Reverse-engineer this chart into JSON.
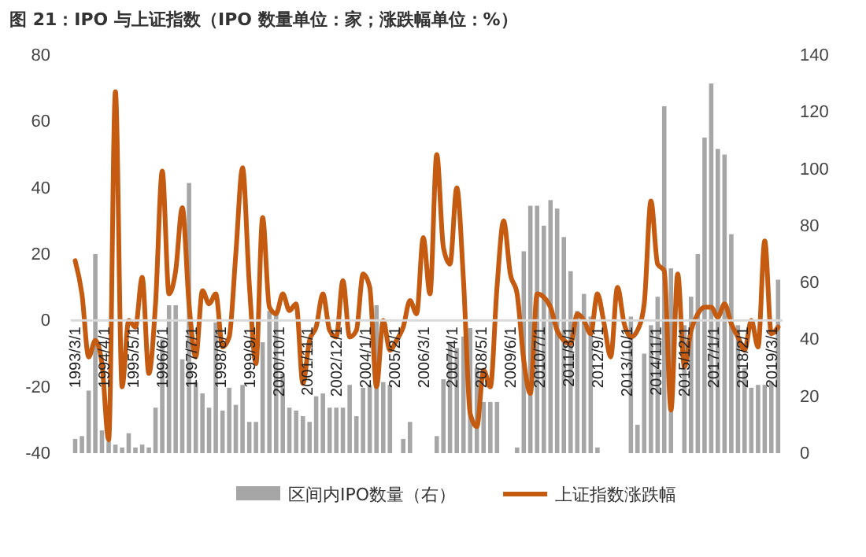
{
  "chart_data": {
    "type": "bar",
    "title": "图 21：IPO 与上证指数（IPO 数量单位：家；涨跌幅单位：%）",
    "x": [
      "1993-03",
      "1993-06",
      "1993-09",
      "1993-12",
      "1994-03",
      "1994-06",
      "1994-09",
      "1994-12",
      "1995-03",
      "1995-06",
      "1995-09",
      "1995-12",
      "1996-03",
      "1996-06",
      "1996-09",
      "1996-12",
      "1997-03",
      "1997-06",
      "1997-09",
      "1997-12",
      "1998-03",
      "1998-06",
      "1998-09",
      "1998-12",
      "1999-03",
      "1999-06",
      "1999-09",
      "1999-12",
      "2000-03",
      "2000-06",
      "2000-09",
      "2000-12",
      "2001-03",
      "2001-06",
      "2001-09",
      "2001-12",
      "2002-03",
      "2002-06",
      "2002-09",
      "2002-12",
      "2003-03",
      "2003-06",
      "2003-09",
      "2003-12",
      "2004-03",
      "2004-06",
      "2004-09",
      "2004-12",
      "2005-03",
      "2005-06",
      "2005-09",
      "2005-12",
      "2006-03",
      "2006-06",
      "2006-09",
      "2006-12",
      "2007-03",
      "2007-06",
      "2007-09",
      "2007-12",
      "2008-03",
      "2008-06",
      "2008-09",
      "2008-12",
      "2009-03",
      "2009-06",
      "2009-09",
      "2009-12",
      "2010-03",
      "2010-06",
      "2010-09",
      "2010-12",
      "2011-03",
      "2011-06",
      "2011-09",
      "2011-12",
      "2012-03",
      "2012-06",
      "2012-09",
      "2012-12",
      "2013-03",
      "2013-06",
      "2013-09",
      "2013-12",
      "2014-03",
      "2014-06",
      "2014-09",
      "2014-12",
      "2015-03",
      "2015-06",
      "2015-09",
      "2015-12",
      "2016-03",
      "2016-06",
      "2016-09",
      "2016-12",
      "2017-03",
      "2017-06",
      "2017-09",
      "2017-12",
      "2018-03",
      "2018-06",
      "2018-09",
      "2018-12",
      "2019-03",
      "2019-06"
    ],
    "series": [
      {
        "name": "区间内IPO数量（右）",
        "axis": "y2",
        "color": "#a6a6a6",
        "values": [
          5,
          6,
          22,
          70,
          8,
          4,
          3,
          2,
          7,
          2,
          3,
          2,
          16,
          40,
          52,
          52,
          33,
          95,
          25,
          21,
          16,
          46,
          15,
          23,
          17,
          24,
          11,
          11,
          39,
          50,
          50,
          28,
          16,
          15,
          13,
          11,
          20,
          21,
          16,
          16,
          16,
          24,
          13,
          23,
          24,
          52,
          25,
          24,
          0,
          5,
          11,
          0,
          0,
          0,
          6,
          26,
          39,
          37,
          41,
          44,
          30,
          18,
          18,
          18,
          0,
          0,
          2,
          71,
          87,
          87,
          80,
          89,
          86,
          76,
          64,
          50,
          56,
          48,
          2,
          0,
          0,
          0,
          0,
          48,
          10,
          35,
          45,
          55,
          122,
          65,
          0,
          45,
          55,
          70,
          111,
          130,
          107,
          105,
          77,
          45,
          30,
          23,
          24,
          24,
          25,
          61
        ]
      },
      {
        "name": "上证指数涨跌幅",
        "type": "line",
        "axis": "y",
        "color": "#c55a11",
        "values": [
          18,
          8,
          -11,
          -6,
          -13,
          -36,
          69,
          -20,
          0,
          -2,
          13,
          -16,
          5,
          45,
          8,
          15,
          34,
          5,
          -11,
          9,
          5,
          8,
          -8,
          -5,
          20,
          46,
          11,
          -13,
          31,
          4,
          2,
          8,
          3,
          5,
          -19,
          -6,
          -2,
          8,
          -3,
          -5,
          12,
          -5,
          -3,
          14,
          10,
          -20,
          0,
          -9,
          -6,
          -2,
          6,
          2,
          25,
          8,
          50,
          22,
          17,
          40,
          12,
          -28,
          -32,
          -15,
          -20,
          10,
          30,
          14,
          8,
          -12,
          -22,
          8,
          7,
          4,
          -3,
          -6,
          -7,
          2,
          0,
          -4,
          8,
          -1,
          -11,
          10,
          -1,
          -5,
          -3,
          5,
          36,
          17,
          15,
          -27,
          14,
          -14,
          -3,
          2,
          4,
          4,
          1,
          5,
          -1,
          -5,
          -9,
          0,
          -8,
          24,
          -4,
          -2
        ]
      }
    ],
    "xlim": [
      "1993-01",
      "2019-08"
    ],
    "xticks": [
      {
        "value": "1993-03",
        "label": "1993/3/1"
      },
      {
        "value": "1994-04",
        "label": "1994/4/1"
      },
      {
        "value": "1995-05",
        "label": "1995/5/1"
      },
      {
        "value": "1996-06",
        "label": "1996/6/1"
      },
      {
        "value": "1997-07",
        "label": "1997/7/1"
      },
      {
        "value": "1998-08",
        "label": "1998/8/1"
      },
      {
        "value": "1999-09",
        "label": "1999/9/1"
      },
      {
        "value": "2000-10",
        "label": "2000/10/1"
      },
      {
        "value": "2001-11",
        "label": "2001/11/1"
      },
      {
        "value": "2002-12",
        "label": "2002/12/1"
      },
      {
        "value": "2004-01",
        "label": "2004/1/1"
      },
      {
        "value": "2005-02",
        "label": "2005/2/1"
      },
      {
        "value": "2006-03",
        "label": "2006/3/1"
      },
      {
        "value": "2007-04",
        "label": "2007/4/1"
      },
      {
        "value": "2008-05",
        "label": "2008/5/1"
      },
      {
        "value": "2009-06",
        "label": "2009/6/1"
      },
      {
        "value": "2010-07",
        "label": "2010/7/1"
      },
      {
        "value": "2011-08",
        "label": "2011/8/1"
      },
      {
        "value": "2012-09",
        "label": "2012/9/1"
      },
      {
        "value": "2013-10",
        "label": "2013/10/1"
      },
      {
        "value": "2014-11",
        "label": "2014/11/1"
      },
      {
        "value": "2015-12",
        "label": "2015/12/1"
      },
      {
        "value": "2017-01",
        "label": "2017/1/1"
      },
      {
        "value": "2018-02",
        "label": "2018/2/1"
      },
      {
        "value": "2019-03",
        "label": "2019/3/1"
      }
    ],
    "ylim": [
      -40,
      80
    ],
    "yticks": [
      -40,
      -20,
      0,
      20,
      40,
      60,
      80
    ],
    "y2lim": [
      0,
      140
    ],
    "y2ticks": [
      0,
      20,
      40,
      60,
      80,
      100,
      120,
      140
    ],
    "legend": "bottom"
  }
}
